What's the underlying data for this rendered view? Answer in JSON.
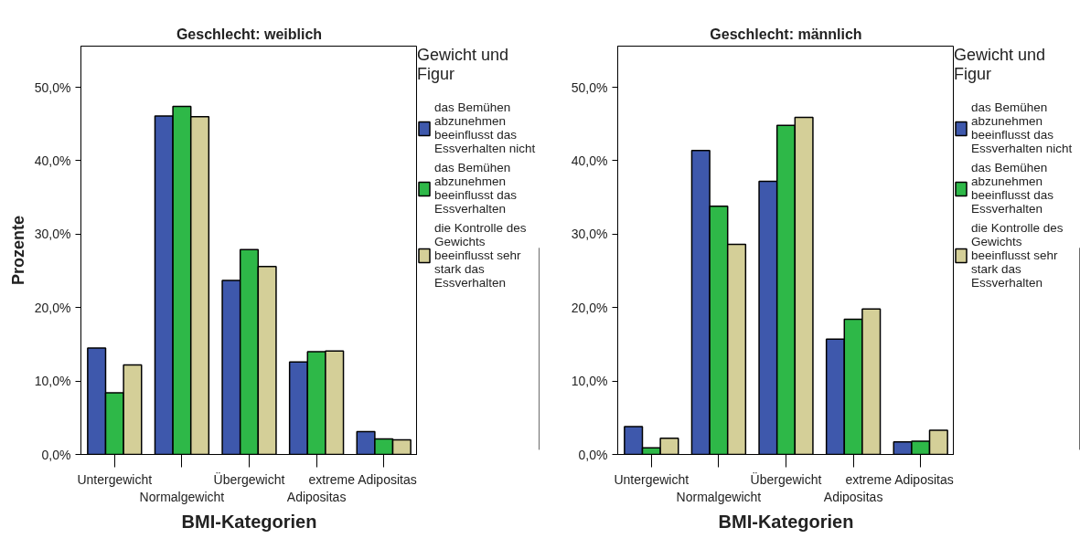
{
  "chart_data": [
    {
      "type": "bar",
      "title": "Geschlecht: weiblich",
      "xlabel": "BMI-Kategorien",
      "ylabel": "Prozente",
      "legend_title": "Gewicht und Figur",
      "legend": "right",
      "grid": false,
      "categories": [
        "Untergewicht",
        "Normalgewicht",
        "Übergewicht",
        "Adipositas",
        "extreme Adipositas"
      ],
      "ylim": [
        0,
        55.6
      ],
      "yticks": [
        {
          "value": 0,
          "label": "0,0%"
        },
        {
          "value": 10,
          "label": "10,0%"
        },
        {
          "value": 20,
          "label": "20,0%"
        },
        {
          "value": 30,
          "label": "30,0%"
        },
        {
          "value": 40,
          "label": "40,0%"
        },
        {
          "value": 50,
          "label": "50,0%"
        }
      ],
      "series": [
        {
          "name": "das Bemühen abzunehmen beeinflusst das Essverhalten nicht",
          "color": "#3e58ac",
          "values": [
            14.5,
            46.1,
            23.7,
            12.6,
            3.1
          ]
        },
        {
          "name": "das Bemühen abzunehmen beeinflusst das Essverhalten",
          "color": "#2eb848",
          "values": [
            8.4,
            47.4,
            27.9,
            14.0,
            2.1
          ]
        },
        {
          "name": "die Kontrolle des Gewichts beeinflusst sehr stark das Essverhalten",
          "color": "#d4cf98",
          "values": [
            12.2,
            46.0,
            25.6,
            14.1,
            2.0
          ]
        }
      ]
    },
    {
      "type": "bar",
      "title": "Geschlecht: männlich",
      "xlabel": "BMI-Kategorien",
      "legend_title": "Gewicht und Figur",
      "legend": "right",
      "grid": false,
      "categories": [
        "Untergewicht",
        "Normalgewicht",
        "Übergewicht",
        "Adipositas",
        "extreme Adipositas"
      ],
      "ylim": [
        0,
        55.6
      ],
      "yticks": [
        {
          "value": 0,
          "label": "0,0%"
        },
        {
          "value": 10,
          "label": "10,0%"
        },
        {
          "value": 20,
          "label": "20,0%"
        },
        {
          "value": 30,
          "label": "30,0%"
        },
        {
          "value": 40,
          "label": "40,0%"
        },
        {
          "value": 50,
          "label": "50,0%"
        }
      ],
      "series": [
        {
          "name": "das Bemühen abzunehmen beeinflusst das Essverhalten nicht",
          "color": "#3e58ac",
          "values": [
            3.8,
            41.4,
            37.2,
            15.7,
            1.7
          ]
        },
        {
          "name": "das Bemühen abzunehmen beeinflusst das Essverhalten",
          "color": "#2eb848",
          "values": [
            0.9,
            33.8,
            44.8,
            18.4,
            1.8
          ]
        },
        {
          "name": "die Kontrolle des Gewichts beeinflusst sehr stark das Essverhalten",
          "color": "#d4cf98",
          "values": [
            2.2,
            28.6,
            45.9,
            19.8,
            3.3
          ]
        }
      ]
    }
  ]
}
